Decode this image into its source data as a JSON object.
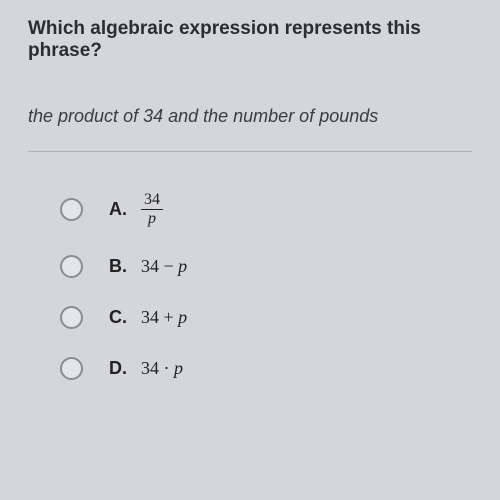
{
  "question": "Which algebraic expression represents this phrase?",
  "phrase": "the product of 34 and the number of pounds",
  "divider_color": "#aeb0b2",
  "background_color": "#d4d6d9",
  "text_color": "#2b2d2e",
  "choices": [
    {
      "letter": "A.",
      "type": "fraction",
      "numerator": "34",
      "denominator": "p"
    },
    {
      "letter": "B.",
      "type": "plain",
      "expr_pre": "34 − ",
      "var": "p"
    },
    {
      "letter": "C.",
      "type": "plain",
      "expr_pre": "34 + ",
      "var": "p"
    },
    {
      "letter": "D.",
      "type": "plain",
      "expr_pre": "34 · ",
      "var": "p"
    }
  ]
}
